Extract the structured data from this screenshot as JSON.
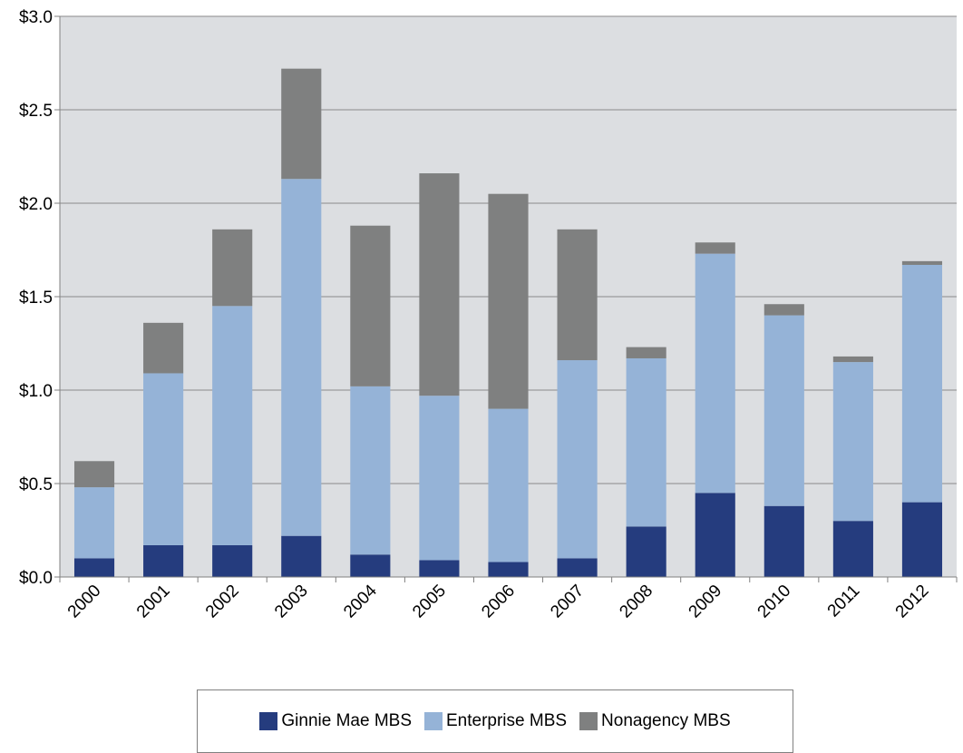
{
  "chart_data": {
    "type": "bar",
    "stacked": true,
    "categories": [
      "2000",
      "2001",
      "2002",
      "2003",
      "2004",
      "2005",
      "2006",
      "2007",
      "2008",
      "2009",
      "2010",
      "2011",
      "2012"
    ],
    "series": [
      {
        "name": "Ginnie Mae MBS",
        "color": "#253c7e",
        "values": [
          0.1,
          0.17,
          0.17,
          0.22,
          0.12,
          0.09,
          0.08,
          0.1,
          0.27,
          0.45,
          0.38,
          0.3,
          0.4
        ]
      },
      {
        "name": "Enterprise MBS",
        "color": "#95b3d7",
        "values": [
          0.38,
          0.92,
          1.28,
          1.91,
          0.9,
          0.88,
          0.82,
          1.06,
          0.9,
          1.28,
          1.02,
          0.85,
          1.27
        ]
      },
      {
        "name": "Nonagency MBS",
        "color": "#7f8080",
        "values": [
          0.14,
          0.27,
          0.41,
          0.59,
          0.86,
          1.19,
          1.15,
          0.7,
          0.06,
          0.06,
          0.06,
          0.03,
          0.02
        ]
      }
    ],
    "yticks": [
      "$0.0",
      "$0.5",
      "$1.0",
      "$1.5",
      "$2.0",
      "$2.5",
      "$3.0"
    ],
    "ylim": [
      0,
      3.0
    ],
    "grid": true,
    "plot_background": "#dcdee1",
    "legend_position": "bottom"
  }
}
